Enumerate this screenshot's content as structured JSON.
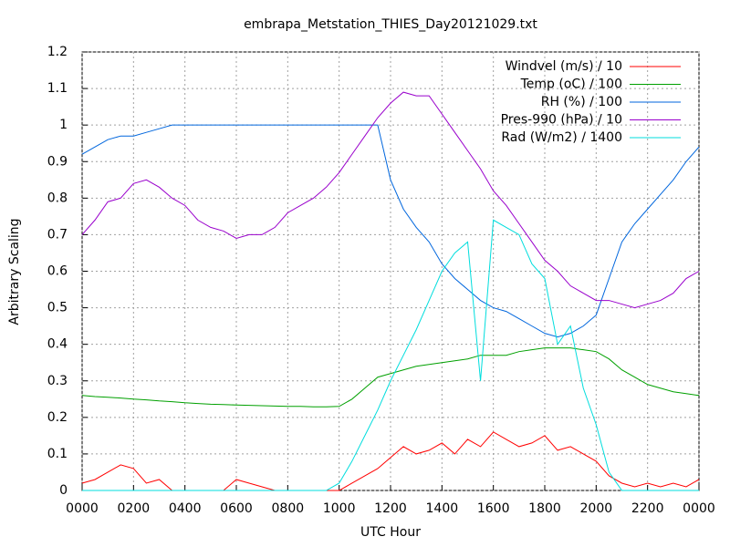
{
  "chart_data": {
    "type": "line",
    "title": "embrapa_Metstation_THIES_Day20121029.txt",
    "xlabel": "UTC Hour",
    "ylabel": "Arbitrary Scaling",
    "xlim": [
      0,
      24
    ],
    "ylim": [
      0,
      1.2
    ],
    "xticks": [
      {
        "value": 0,
        "label": "0000"
      },
      {
        "value": 2,
        "label": "0200"
      },
      {
        "value": 4,
        "label": "0400"
      },
      {
        "value": 6,
        "label": "0600"
      },
      {
        "value": 8,
        "label": "0800"
      },
      {
        "value": 10,
        "label": "1000"
      },
      {
        "value": 12,
        "label": "1200"
      },
      {
        "value": 14,
        "label": "1400"
      },
      {
        "value": 16,
        "label": "1600"
      },
      {
        "value": 18,
        "label": "1800"
      },
      {
        "value": 20,
        "label": "2000"
      },
      {
        "value": 22,
        "label": "2200"
      },
      {
        "value": 24,
        "label": "0000"
      }
    ],
    "yticks": [
      0,
      0.1,
      0.2,
      0.3,
      0.4,
      0.5,
      0.6,
      0.7,
      0.8,
      0.9,
      1,
      1.1,
      1.2
    ],
    "grid": true,
    "legend": "top-right",
    "x": [
      0,
      0.5,
      1,
      1.5,
      2,
      2.5,
      3,
      3.5,
      4,
      4.5,
      5,
      5.5,
      6,
      6.5,
      7,
      7.5,
      8,
      8.5,
      9,
      9.5,
      10,
      10.5,
      11,
      11.5,
      12,
      12.5,
      13,
      13.5,
      14,
      14.5,
      15,
      15.5,
      16,
      16.5,
      17,
      17.5,
      18,
      18.5,
      19,
      19.5,
      20,
      20.5,
      21,
      21.5,
      22,
      22.5,
      23,
      23.5,
      24
    ],
    "series": [
      {
        "name": "Windvel (m/s) / 10",
        "color": "#ff0000",
        "values": [
          0.02,
          0.03,
          0.05,
          0.07,
          0.06,
          0.02,
          0.03,
          0,
          0,
          0,
          0,
          0,
          0.03,
          0.02,
          0.01,
          0,
          0,
          0,
          0,
          0,
          0,
          0.02,
          0.04,
          0.06,
          0.09,
          0.12,
          0.1,
          0.11,
          0.13,
          0.1,
          0.14,
          0.12,
          0.16,
          0.14,
          0.12,
          0.13,
          0.15,
          0.11,
          0.12,
          0.1,
          0.08,
          0.04,
          0.02,
          0.01,
          0.02,
          0.01,
          0.02,
          0.01,
          0.03
        ]
      },
      {
        "name": "Temp (oC) / 100",
        "color": "#00a000",
        "values": [
          0.26,
          0.257,
          0.255,
          0.253,
          0.25,
          0.248,
          0.245,
          0.243,
          0.24,
          0.238,
          0.236,
          0.235,
          0.234,
          0.233,
          0.232,
          0.231,
          0.23,
          0.23,
          0.229,
          0.229,
          0.23,
          0.25,
          0.28,
          0.31,
          0.32,
          0.33,
          0.34,
          0.345,
          0.35,
          0.355,
          0.36,
          0.37,
          0.37,
          0.37,
          0.38,
          0.385,
          0.39,
          0.39,
          0.39,
          0.385,
          0.38,
          0.36,
          0.33,
          0.31,
          0.29,
          0.28,
          0.27,
          0.265,
          0.26
        ]
      },
      {
        "name": "RH (%) / 100",
        "color": "#0066dd",
        "values": [
          0.92,
          0.94,
          0.96,
          0.97,
          0.97,
          0.98,
          0.99,
          1,
          1,
          1,
          1,
          1,
          1,
          1,
          1,
          1,
          1,
          1,
          1,
          1,
          1,
          1,
          1,
          1,
          0.85,
          0.77,
          0.72,
          0.68,
          0.62,
          0.58,
          0.55,
          0.52,
          0.5,
          0.49,
          0.47,
          0.45,
          0.43,
          0.42,
          0.43,
          0.45,
          0.48,
          0.58,
          0.68,
          0.73,
          0.77,
          0.81,
          0.85,
          0.9,
          0.94
        ]
      },
      {
        "name": "Pres-990 (hPa) / 10",
        "color": "#9900cc",
        "values": [
          0.7,
          0.74,
          0.79,
          0.8,
          0.84,
          0.85,
          0.83,
          0.8,
          0.78,
          0.74,
          0.72,
          0.71,
          0.69,
          0.7,
          0.7,
          0.72,
          0.76,
          0.78,
          0.8,
          0.83,
          0.87,
          0.92,
          0.97,
          1.02,
          1.06,
          1.09,
          1.08,
          1.08,
          1.03,
          0.98,
          0.93,
          0.88,
          0.82,
          0.78,
          0.73,
          0.68,
          0.63,
          0.6,
          0.56,
          0.54,
          0.52,
          0.52,
          0.51,
          0.5,
          0.51,
          0.52,
          0.54,
          0.58,
          0.6
        ]
      },
      {
        "name": "Rad (W/m2) / 1400",
        "color": "#00dddd",
        "values": [
          0,
          0,
          0,
          0,
          0,
          0,
          0,
          0,
          0,
          0,
          0,
          0,
          0,
          0,
          0,
          0,
          0,
          0,
          0,
          0,
          0.02,
          0.08,
          0.15,
          0.22,
          0.3,
          0.37,
          0.44,
          0.52,
          0.6,
          0.65,
          0.68,
          0.3,
          0.74,
          0.72,
          0.7,
          0.62,
          0.58,
          0.4,
          0.45,
          0.28,
          0.18,
          0.05,
          0,
          0,
          0,
          0,
          0,
          0,
          0
        ]
      }
    ]
  }
}
